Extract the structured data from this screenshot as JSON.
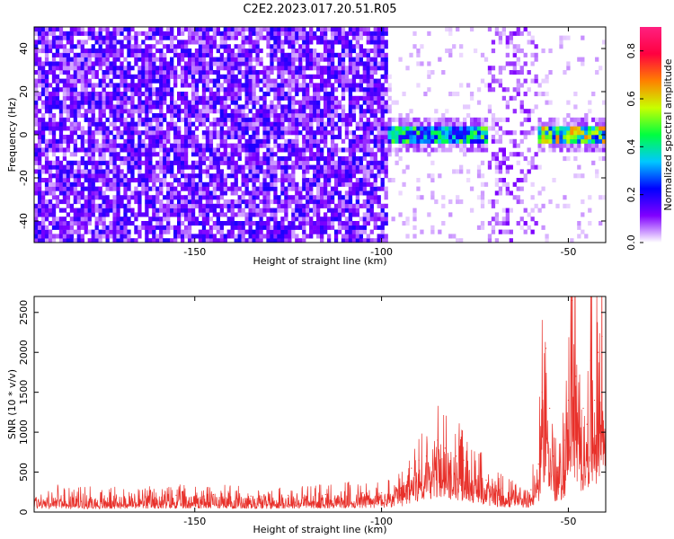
{
  "figure": {
    "title": "C2E2.2023.017.20.51.R05"
  },
  "chart_data": [
    {
      "type": "heatmap",
      "title": "C2E2.2023.017.20.51.R05",
      "xlabel": "Height of straight line (km)",
      "ylabel": "Frequency (Hz)",
      "xlim": [
        -193,
        -40
      ],
      "ylim": [
        -50,
        50
      ],
      "x_ticks": [
        "-150",
        "-100",
        "-50"
      ],
      "y_ticks": [
        "40",
        "20",
        "0",
        "-20",
        "-40"
      ],
      "x_tick_values": [
        -150,
        -100,
        -50
      ],
      "y_tick_values": [
        40,
        20,
        0,
        -20,
        -40
      ],
      "colorbar": {
        "label": "Normalized spectral amplitude",
        "range": [
          0,
          0.9
        ],
        "ticks": [
          "0.0",
          "0.2",
          "0.4",
          "0.6",
          "0.8"
        ],
        "tick_values": [
          0.0,
          0.2,
          0.4,
          0.6,
          0.8
        ],
        "colormap": [
          "#ffffff",
          "#8000ff",
          "#0000ff",
          "#00c8ff",
          "#00ff40",
          "#c8ff00",
          "#ff8000",
          "#ff0040",
          "#ff2080"
        ]
      },
      "regions": [
        {
          "x_range": [
            -193,
            -98
          ],
          "description_level": 0.12,
          "band": "broadband"
        },
        {
          "x_range": [
            -98,
            -72
          ],
          "description_level": 0.35,
          "band": "narrow near 0 Hz"
        },
        {
          "x_range": [
            -72,
            -58
          ],
          "description_level": 0.06,
          "band": "broadband sparse"
        },
        {
          "x_range": [
            -58,
            -40
          ],
          "description_level": 0.45,
          "band": "narrow near 0 Hz"
        }
      ],
      "grid": false
    },
    {
      "type": "line",
      "xlabel": "Height of straight line (km)",
      "ylabel": "SNR (10 * v/v)",
      "xlim": [
        -193,
        -40
      ],
      "ylim": [
        0,
        2700
      ],
      "x_ticks": [
        "-150",
        "-100",
        "-50"
      ],
      "y_ticks": [
        "0",
        "500",
        "1000",
        "1500",
        "2000",
        "2500"
      ],
      "x_tick_values": [
        -150,
        -100,
        -50
      ],
      "y_tick_values": [
        0,
        500,
        1000,
        1500,
        2000,
        2500
      ],
      "color": "#e8302a",
      "series": [
        {
          "x": [
            -193,
            -185,
            -175,
            -165,
            -155,
            -145,
            -135,
            -125,
            -115,
            -105,
            -100,
            -95,
            -92,
            -90,
            -88,
            -85,
            -83,
            -80,
            -78,
            -75,
            -72,
            -68,
            -64,
            -60,
            -58,
            -57,
            -56,
            -55,
            -54,
            -53,
            -51,
            -50,
            -49,
            -48,
            -47,
            -46,
            -45,
            -44,
            -43,
            -42,
            -41,
            -40
          ],
          "values": [
            200,
            210,
            190,
            200,
            210,
            220,
            200,
            210,
            220,
            240,
            240,
            300,
            550,
            650,
            700,
            900,
            800,
            700,
            650,
            550,
            400,
            300,
            240,
            280,
            600,
            1500,
            2050,
            1300,
            700,
            500,
            900,
            1400,
            2650,
            1700,
            1200,
            1300,
            1100,
            1900,
            1400,
            2000,
            2200,
            1500
          ]
        }
      ],
      "grid": false
    }
  ]
}
